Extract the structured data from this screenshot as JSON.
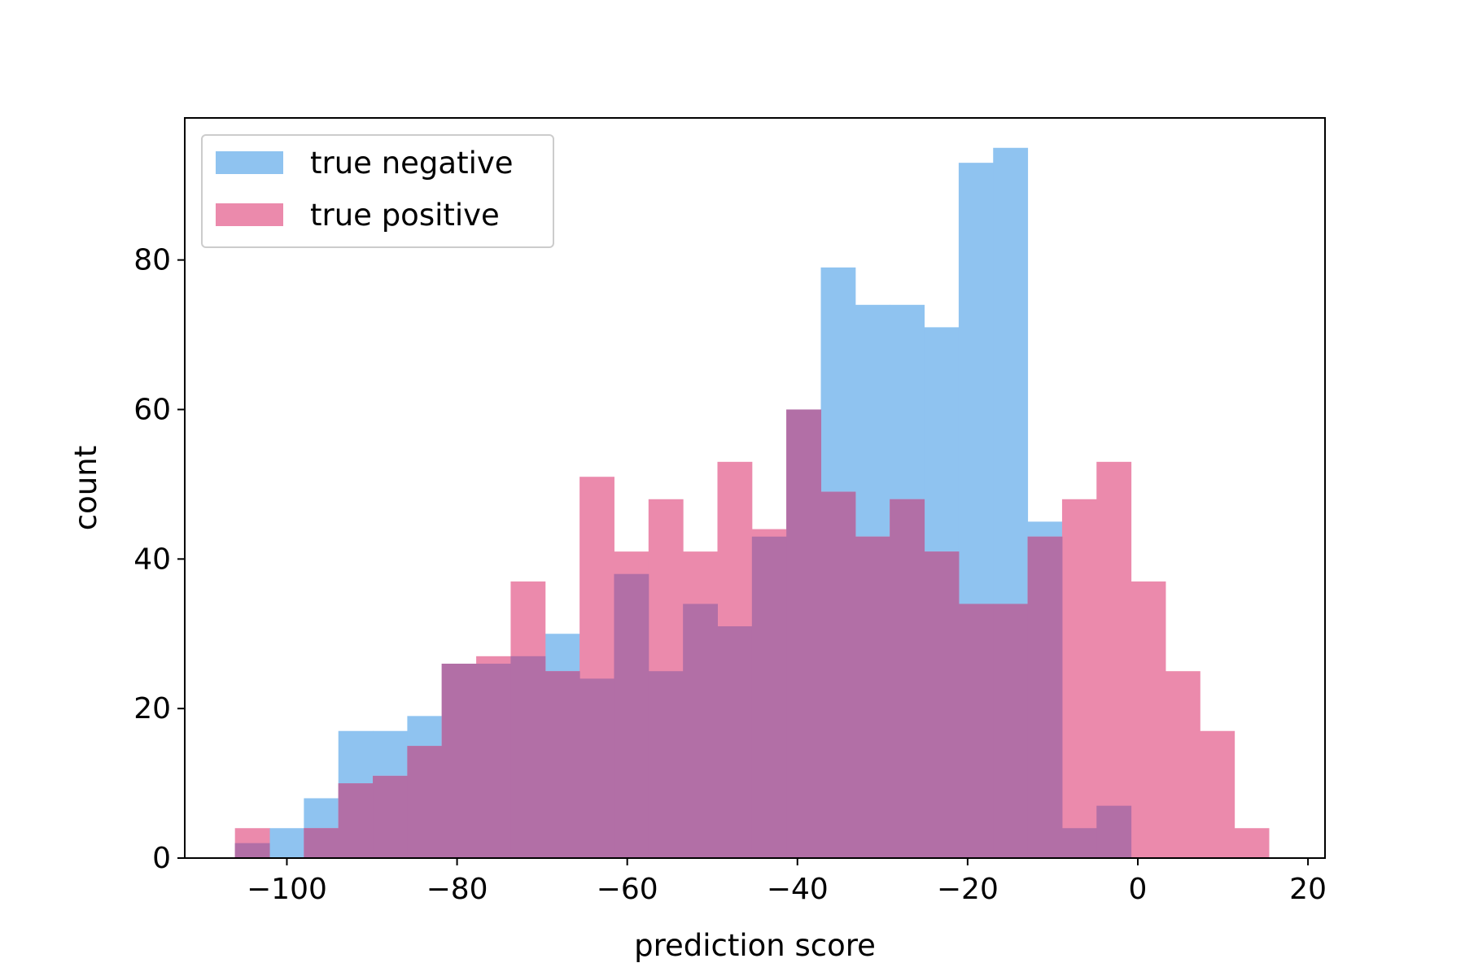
{
  "chart_data": {
    "type": "histogram",
    "xlabel": "prediction score",
    "ylabel": "count",
    "xlim": [
      -112,
      22
    ],
    "ylim": [
      0,
      99
    ],
    "xticks": [
      -100,
      -80,
      -60,
      -40,
      -20,
      0,
      20
    ],
    "xtick_labels": [
      "−100",
      "−80",
      "−60",
      "−40",
      "−20",
      "0",
      "20"
    ],
    "yticks": [
      0,
      20,
      40,
      60,
      80
    ],
    "ytick_labels": [
      "0",
      "20",
      "40",
      "60",
      "80"
    ],
    "bin_edges": [
      -106.1,
      -102.05,
      -98.0,
      -93.95,
      -89.9,
      -85.85,
      -81.8,
      -77.75,
      -73.7,
      -69.65,
      -65.6,
      -61.55,
      -57.5,
      -53.45,
      -49.4,
      -45.35,
      -41.3,
      -37.25,
      -33.2,
      -29.15,
      -25.1,
      -21.05,
      -17.0,
      -12.95,
      -8.9,
      -4.85,
      -0.8,
      3.25,
      7.3,
      11.35,
      15.4
    ],
    "series": [
      {
        "name": "true negative",
        "color": "#8fc3f0",
        "values": [
          2,
          4,
          8,
          17,
          17,
          19,
          26,
          26,
          27,
          30,
          24,
          38,
          25,
          34,
          31,
          43,
          60,
          79,
          74,
          74,
          71,
          93,
          95,
          45,
          4,
          7,
          0,
          0,
          0,
          0
        ]
      },
      {
        "name": "true positive",
        "color": "#eb8aac",
        "values": [
          4,
          0,
          4,
          10,
          11,
          15,
          26,
          27,
          37,
          25,
          51,
          41,
          48,
          41,
          53,
          44,
          60,
          49,
          43,
          48,
          41,
          34,
          34,
          43,
          48,
          53,
          37,
          25,
          17,
          4
        ]
      }
    ],
    "overlap_color": "#b26fa6",
    "legend_position": "upper left",
    "grid": false
  }
}
